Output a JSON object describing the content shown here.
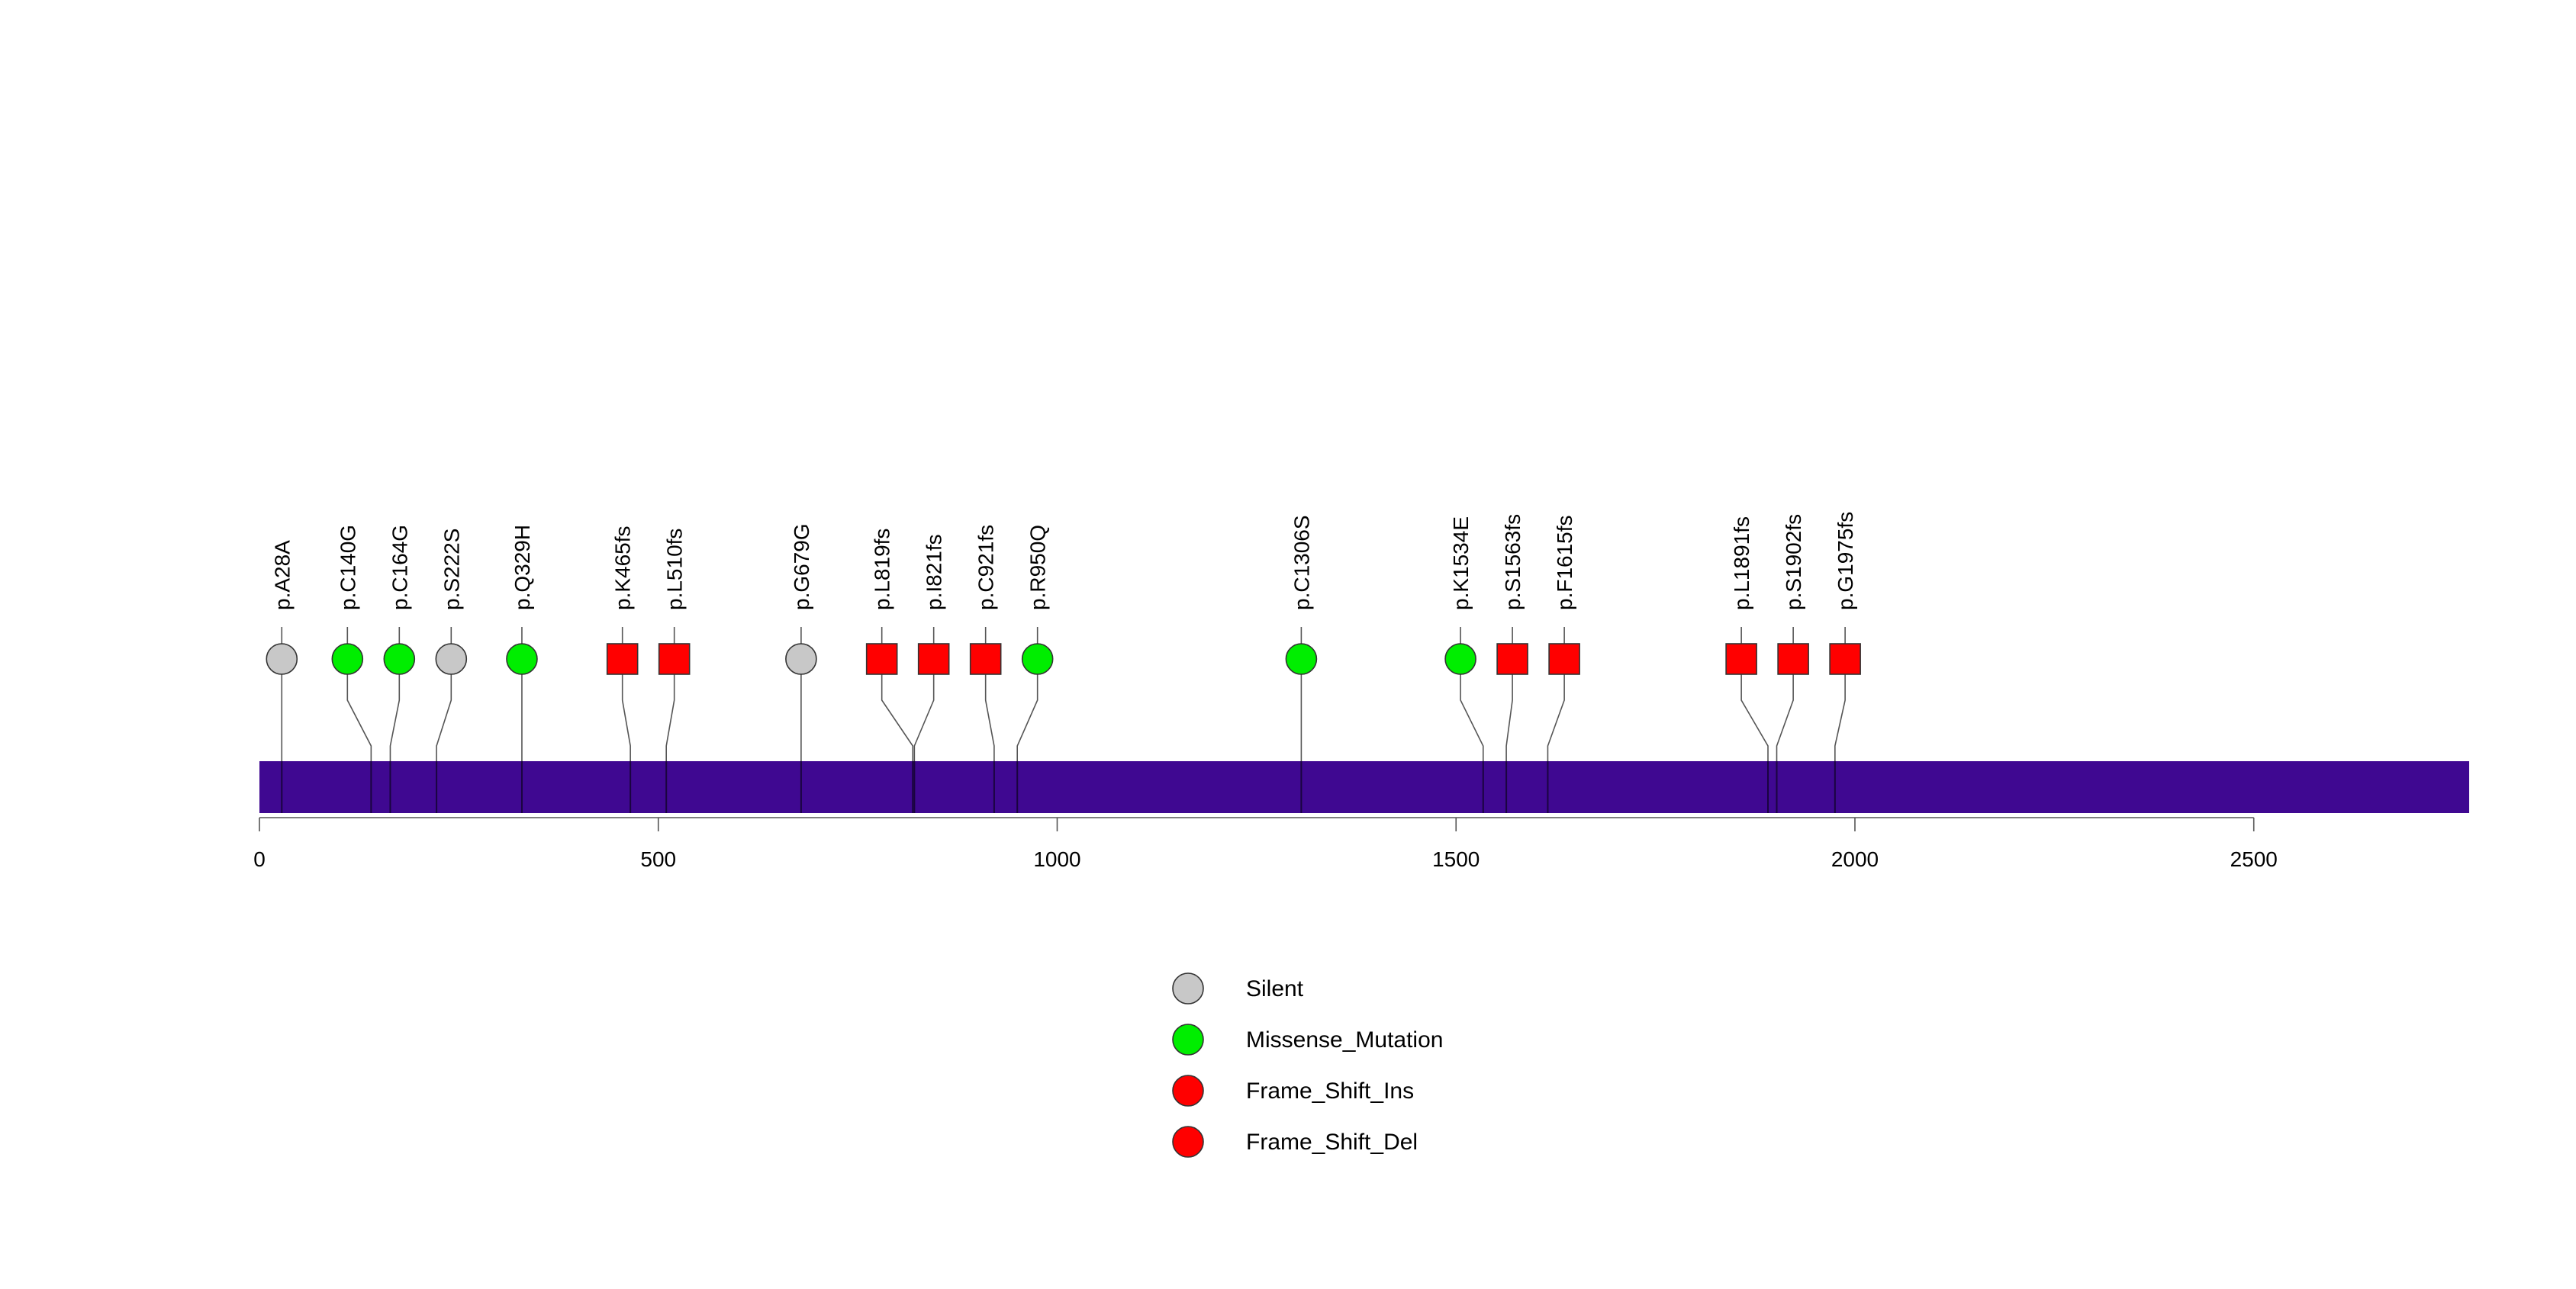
{
  "chart_data": {
    "type": "lollipop",
    "protein_length": 2770,
    "axis": {
      "min": 0,
      "max": 2770,
      "ticks": [
        0,
        500,
        1000,
        1500,
        2000,
        2500
      ]
    },
    "colors": {
      "bar": "#3f0891",
      "Silent": "#c8c8c8",
      "Missense_Mutation": "#00ee00",
      "Frame_Shift_Ins": "#ff0000",
      "Frame_Shift_Del": "#ff0000"
    },
    "mutations": [
      {
        "label": "p.A28A",
        "pos": 28,
        "type": "Silent",
        "shape": "circle"
      },
      {
        "label": "p.C140G",
        "pos": 140,
        "type": "Missense_Mutation",
        "shape": "circle"
      },
      {
        "label": "p.C164G",
        "pos": 164,
        "type": "Missense_Mutation",
        "shape": "circle"
      },
      {
        "label": "p.S222S",
        "pos": 222,
        "type": "Silent",
        "shape": "circle"
      },
      {
        "label": "p.Q329H",
        "pos": 329,
        "type": "Missense_Mutation",
        "shape": "circle"
      },
      {
        "label": "p.K465fs",
        "pos": 465,
        "type": "Frame_Shift_Del",
        "shape": "square"
      },
      {
        "label": "p.L510fs",
        "pos": 510,
        "type": "Frame_Shift_Del",
        "shape": "square"
      },
      {
        "label": "p.G679G",
        "pos": 679,
        "type": "Silent",
        "shape": "circle"
      },
      {
        "label": "p.L819fs",
        "pos": 819,
        "type": "Frame_Shift_Del",
        "shape": "square"
      },
      {
        "label": "p.I821fs",
        "pos": 821,
        "type": "Frame_Shift_Del",
        "shape": "square"
      },
      {
        "label": "p.C921fs",
        "pos": 921,
        "type": "Frame_Shift_Del",
        "shape": "square"
      },
      {
        "label": "p.R950Q",
        "pos": 950,
        "type": "Missense_Mutation",
        "shape": "circle"
      },
      {
        "label": "p.C1306S",
        "pos": 1306,
        "type": "Missense_Mutation",
        "shape": "circle"
      },
      {
        "label": "p.K1534E",
        "pos": 1534,
        "type": "Missense_Mutation",
        "shape": "circle"
      },
      {
        "label": "p.S1563fs",
        "pos": 1563,
        "type": "Frame_Shift_Del",
        "shape": "square"
      },
      {
        "label": "p.F1615fs",
        "pos": 1615,
        "type": "Frame_Shift_Del",
        "shape": "square"
      },
      {
        "label": "p.L1891fs",
        "pos": 1891,
        "type": "Frame_Shift_Del",
        "shape": "square"
      },
      {
        "label": "p.S1902fs",
        "pos": 1902,
        "type": "Frame_Shift_Del",
        "shape": "square"
      },
      {
        "label": "p.G1975fs",
        "pos": 1975,
        "type": "Frame_Shift_Del",
        "shape": "square"
      }
    ],
    "legend": [
      {
        "label": "Silent",
        "color": "#c8c8c8"
      },
      {
        "label": "Missense_Mutation",
        "color": "#00ee00"
      },
      {
        "label": "Frame_Shift_Ins",
        "color": "#ff0000"
      },
      {
        "label": "Frame_Shift_Del",
        "color": "#ff0000"
      }
    ]
  }
}
